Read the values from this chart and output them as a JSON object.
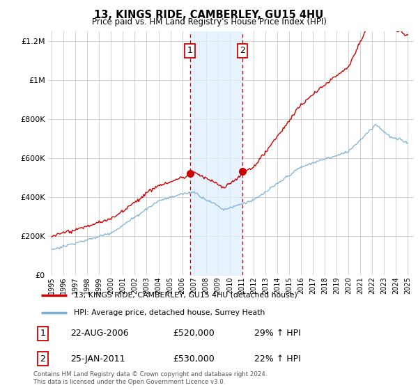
{
  "title": "13, KINGS RIDE, CAMBERLEY, GU15 4HU",
  "subtitle": "Price paid vs. HM Land Registry's House Price Index (HPI)",
  "legend_line1": "13, KINGS RIDE, CAMBERLEY, GU15 4HU (detached house)",
  "legend_line2": "HPI: Average price, detached house, Surrey Heath",
  "sale1_label": "1",
  "sale1_date": "22-AUG-2006",
  "sale1_price": "£520,000",
  "sale1_hpi": "29% ↑ HPI",
  "sale2_label": "2",
  "sale2_date": "25-JAN-2011",
  "sale2_price": "£530,000",
  "sale2_hpi": "22% ↑ HPI",
  "footer": "Contains HM Land Registry data © Crown copyright and database right 2024.\nThis data is licensed under the Open Government Licence v3.0.",
  "red_color": "#cc0000",
  "blue_color": "#7bafd4",
  "shade_color": "#ddeeff",
  "ylim_min": 0,
  "ylim_max": 1250000,
  "yticks": [
    0,
    200000,
    400000,
    600000,
    800000,
    1000000,
    1200000
  ],
  "start_year": 1995,
  "end_year": 2025,
  "sale1_year": 2006.65,
  "sale2_year": 2011.07
}
